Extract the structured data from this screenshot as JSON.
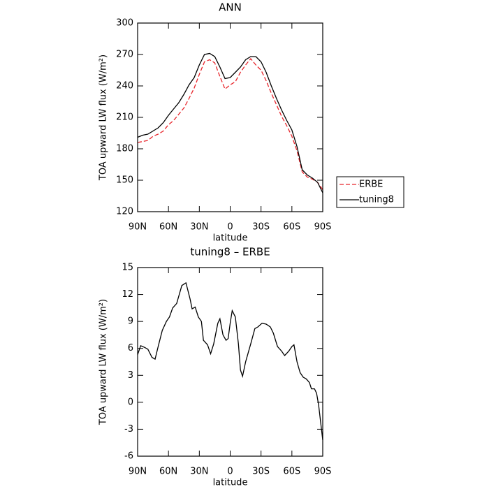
{
  "chart_data": [
    {
      "type": "line",
      "title": "ANN",
      "x_label": "latitude",
      "y_label": "TOA upward LW flux (W/m²)",
      "x": [
        90,
        85,
        80,
        75,
        70,
        65,
        60,
        55,
        50,
        45,
        40,
        35,
        30,
        25,
        20,
        15,
        10,
        5,
        0,
        -5,
        -10,
        -15,
        -20,
        -25,
        -30,
        -35,
        -40,
        -45,
        -50,
        -55,
        -60,
        -65,
        -70,
        -75,
        -80,
        -85,
        -90
      ],
      "series": [
        {
          "name": "ERBE",
          "color": "#e8242a",
          "line_style": "dashed",
          "values": [
            186,
            187,
            188,
            192,
            194,
            197,
            203,
            207,
            213,
            219,
            228,
            238,
            251,
            263,
            265,
            262,
            249,
            237,
            241,
            244,
            253,
            260,
            266,
            260,
            255,
            245,
            233,
            222,
            211,
            202,
            192,
            178,
            158,
            153,
            151,
            148,
            141
          ]
        },
        {
          "name": "tuning8",
          "color": "#000000",
          "line_style": "solid",
          "values": [
            191,
            193,
            194,
            197,
            200,
            205,
            212,
            218,
            224,
            232,
            241,
            248,
            260,
            270,
            271,
            268,
            258,
            247,
            248,
            253,
            258,
            265,
            268,
            268,
            263,
            253,
            240,
            228,
            217,
            207,
            198,
            182,
            160,
            155,
            152,
            148,
            138
          ]
        }
      ],
      "xlim": [
        90,
        -90
      ],
      "xticks": [
        {
          "value": 90,
          "label": "90N"
        },
        {
          "value": 60,
          "label": "60N"
        },
        {
          "value": 30,
          "label": "30N"
        },
        0,
        {
          "value": -30,
          "label": "30S"
        },
        {
          "value": -60,
          "label": "60S"
        },
        {
          "value": -90,
          "label": "90S"
        }
      ],
      "ylim": [
        120,
        300
      ],
      "yticks": [
        120,
        150,
        180,
        210,
        240,
        270,
        300
      ],
      "legend": "right"
    },
    {
      "type": "line",
      "title": "tuning8 – ERBE",
      "x_label": "latitude",
      "y_label": "TOA upward LW flux (W/m²)",
      "x": [
        90,
        87,
        83,
        80,
        76,
        73,
        70,
        66,
        62,
        59,
        56,
        52,
        47,
        43,
        39,
        37,
        34,
        31,
        28,
        26,
        22,
        19,
        16,
        12,
        10,
        7,
        4,
        2,
        0,
        -2,
        -5,
        -8,
        -10,
        -12,
        -15,
        -20,
        -24,
        -27,
        -31,
        -35,
        -39,
        -42,
        -46,
        -50,
        -53,
        -57,
        -60,
        -62,
        -65,
        -68,
        -71,
        -74,
        -77,
        -79,
        -82,
        -84,
        -86,
        -90
      ],
      "series": [
        {
          "name": "tuning8 – ERBE",
          "color": "#000000",
          "line_style": "solid",
          "values": [
            5.3,
            6.3,
            6.1,
            5.9,
            5.0,
            4.8,
            6.2,
            8.0,
            9.0,
            9.5,
            10.5,
            11.0,
            13.0,
            13.3,
            11.5,
            10.4,
            10.6,
            9.5,
            9.0,
            6.9,
            6.4,
            5.4,
            6.5,
            8.8,
            9.3,
            7.5,
            6.9,
            7.1,
            8.8,
            10.2,
            9.5,
            6.5,
            3.6,
            2.9,
            4.5,
            6.5,
            8.2,
            8.4,
            8.8,
            8.7,
            8.4,
            7.7,
            6.2,
            5.7,
            5.2,
            5.7,
            6.2,
            6.4,
            4.5,
            3.3,
            2.8,
            2.6,
            2.2,
            1.5,
            1.5,
            1.0,
            -0.3,
            -4.2
          ]
        }
      ],
      "xlim": [
        90,
        -90
      ],
      "xticks": [
        {
          "value": 90,
          "label": "90N"
        },
        {
          "value": 60,
          "label": "60N"
        },
        {
          "value": 30,
          "label": "30N"
        },
        0,
        {
          "value": -30,
          "label": "30S"
        },
        {
          "value": -60,
          "label": "60S"
        },
        {
          "value": -90,
          "label": "90S"
        }
      ],
      "ylim": [
        -6,
        15
      ],
      "yticks": [
        -6,
        -3,
        0,
        3,
        6,
        9,
        12,
        15
      ]
    }
  ]
}
